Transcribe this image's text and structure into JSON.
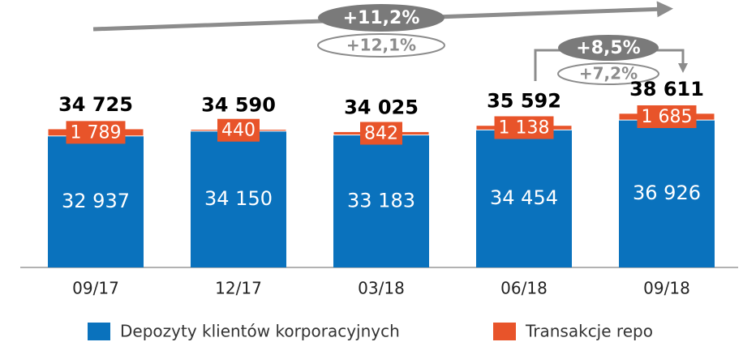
{
  "chart_data": {
    "type": "stacked_bar",
    "categories": [
      "09/17",
      "12/17",
      "03/18",
      "06/18",
      "09/18"
    ],
    "series": [
      {
        "name": "Depozyty klientów korporacyjnych",
        "color": "#0a72bd",
        "values": [
          32937,
          34150,
          33183,
          34454,
          36926
        ],
        "value_labels": [
          "32 937",
          "34 150",
          "33 183",
          "34 454",
          "36 926"
        ]
      },
      {
        "name": "Transakcje repo",
        "color": "#e8542a",
        "values": [
          1789,
          440,
          842,
          1138,
          1685
        ],
        "value_labels": [
          "1 789",
          "440",
          "842",
          "1 138",
          "1 685"
        ]
      }
    ],
    "totals": {
      "values": [
        34725,
        34590,
        34025,
        35592,
        38611
      ],
      "value_labels": [
        "34 725",
        "34 590",
        "34 025",
        "35 592",
        "38 611"
      ]
    },
    "annotations": [
      "+11,2%",
      "+12,1%",
      "+8,5%",
      "+7,2%"
    ],
    "ylim": [
      0,
      67000
    ]
  }
}
